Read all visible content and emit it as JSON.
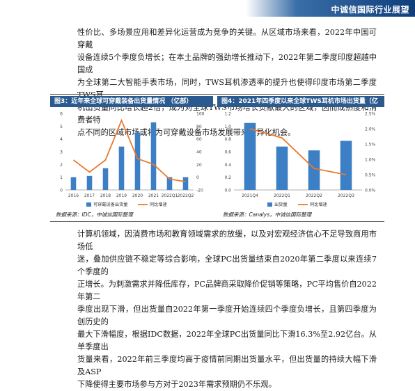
{
  "header": {
    "title": "中诚信国际行业展望",
    "color": "#0f3e7a"
  },
  "para1": [
    "性价比、多场景应用和差异化运营成为竞争的关键。从区域市场来看，2022年中国可穿戴",
    "设备连续5个季度负增长；在本土品牌的强劲增长推动下，2022年第二季度印度超越中国成",
    "为全球第二大智能手表市场，同时，TWS耳机渗透率的提升也使得印度市场第二季度TWS耳",
    "机出货量同比增长超2倍，成为对全球TWS市场增长贡献最大的区域，因而成熟度和消费者特",
    "点不同的区域市场或将为可穿戴设备市场发展带来差异化机会。"
  ],
  "figure3": {
    "title": "图3：近年来全球可穿戴装备出货量情况 （亿部）",
    "source": "数据来源：IDC，中诚信国际整理"
  },
  "figure4": {
    "title": "图4：2021年四季度以来全球TWS耳机市场出货量（亿台）",
    "source": "数据来源：Canalys，中诚信国际整理"
  },
  "chart_data": [
    {
      "type": "bar",
      "categories": [
        "2016",
        "2017",
        "2018",
        "2019",
        "2020",
        "2021",
        "2022Q1",
        "2022Q2"
      ],
      "series": [
        {
          "name": "可穿戴设备出货量",
          "values": [
            1.0,
            1.1,
            1.7,
            3.4,
            4.5,
            5.3,
            1.0,
            1.0
          ],
          "axis": "left",
          "color": "#3c7fc4"
        },
        {
          "name": "同比增速",
          "type": "line",
          "values": [
            27,
            8,
            27,
            89,
            29,
            20,
            -3,
            -7
          ],
          "axis": "right",
          "color": "#e9792b"
        }
      ],
      "ylim": [
        0,
        6
      ],
      "y2lim": [
        -20,
        100
      ],
      "yticks": [
        "0",
        "1",
        "2",
        "3",
        "4",
        "5",
        "6"
      ],
      "y2ticks": [
        "-20",
        "0",
        "20",
        "40",
        "60",
        "80",
        "100"
      ]
    },
    {
      "type": "bar",
      "categories": [
        "2021Q4",
        "2022Q1",
        "2022Q2",
        "2022Q3"
      ],
      "series": [
        {
          "name": "出货量",
          "values": [
            1.05,
            0.68,
            0.62,
            0.77
          ],
          "axis": "left",
          "color": "#3c7fc4"
        },
        {
          "name": "同比增速",
          "type": "line",
          "values": [
            2.0,
            1.7,
            0.7,
            0.5
          ],
          "axis": "right",
          "color": "#e9792b"
        }
      ],
      "ylim": [
        0,
        1.2
      ],
      "y2lim": [
        0,
        2.5
      ],
      "yticks": [
        "0.0",
        "0.2",
        "0.4",
        "0.6",
        "0.8",
        "1.0",
        "1.2"
      ],
      "y2ticks": [
        "0.0%",
        "0.5%",
        "1.0%",
        "1.5%",
        "2.0%",
        "2.5%"
      ]
    }
  ],
  "para2": [
    "计算机领域，因消费市场和教育领域需求的放缓，以及对宏观经济信心不足导致商用市场低",
    "迷，叠加供应链不稳定等综合影响，全球PC出货量结束自2020年第二季度以来连续7个季度的",
    "正增长。为刺激需求并降低库存，PC品牌商采取降价促销等策略，PC平均售价自2022年第二",
    "季度出现下滑，但出货量自2022年第一季度开始连续四个季度负增长，且第四季度为创历史的",
    "最大下滑幅度，根据IDC数据，2022年全球PC出货量同比下滑16.3%至2.92亿台。从单季度出",
    "货量来看，2022年前三季度均高于疫情前同期出货量水平，但出货量的持续大幅下滑及ASP",
    "下降使得主要市场参与方对于2023年需求预期仍不乐观。"
  ]
}
